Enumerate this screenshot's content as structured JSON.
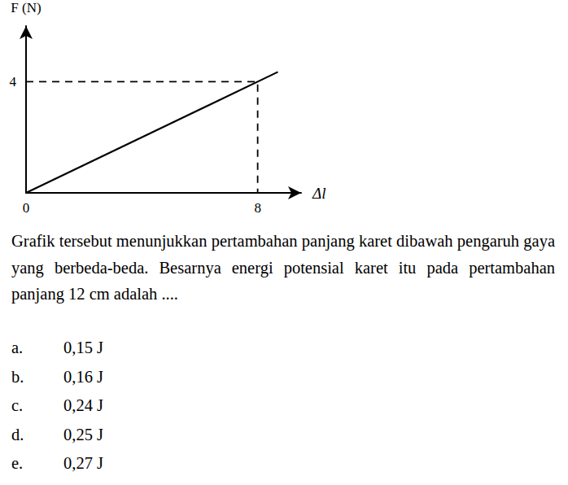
{
  "chart_data": {
    "type": "line",
    "y_label": "F (N)",
    "x_label": "Δl",
    "x": [
      0,
      8.7
    ],
    "values": [
      0,
      4.35
    ],
    "color": "#000000",
    "line_style": "solid",
    "guide": {
      "x": 8,
      "y": 4
    },
    "xlim": [
      0,
      9.5
    ],
    "ylim": [
      0,
      6
    ],
    "xticks": [
      0,
      8
    ],
    "yticks": [
      4
    ],
    "grid": false
  },
  "question": "Grafik tersebut menunjukkan pertambahan panjang karet dibawah pengaruh gaya yang berbeda-beda. Besarnya energi potensial karet itu pada pertambahan panjang 12 cm adalah ....",
  "options": [
    {
      "letter": "a.",
      "text": "0,15 J"
    },
    {
      "letter": "b.",
      "text": "0,16 J"
    },
    {
      "letter": "c.",
      "text": "0,24 J"
    },
    {
      "letter": "d.",
      "text": "0,25 J"
    },
    {
      "letter": "e.",
      "text": "0,27 J"
    }
  ]
}
